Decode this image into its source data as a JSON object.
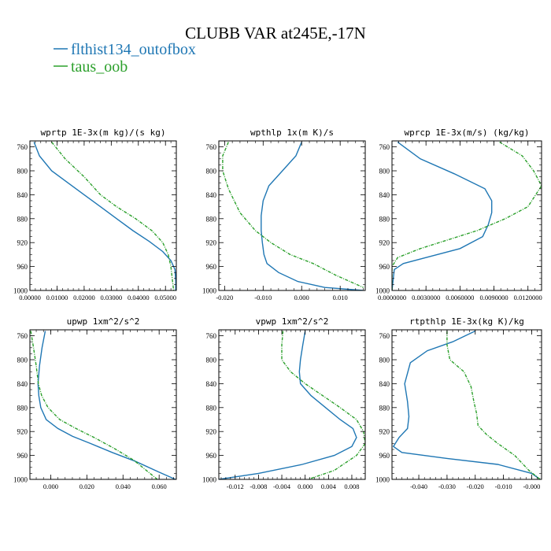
{
  "figure": {
    "title": "CLUBB VAR at245E,-17N",
    "legend": [
      {
        "label": "flthist134_outofbox",
        "color": "#1f77b4"
      },
      {
        "label": "taus_oob",
        "color": "#2ca02c"
      }
    ],
    "legend_placement": "top-left"
  },
  "chart_data": [
    {
      "type": "line",
      "title": "wprtp  1E-3x(m kg)/(s kg)",
      "xlim": [
        0.0,
        0.054
      ],
      "ylim": [
        1000,
        750
      ],
      "y_inverted": true,
      "xticks": [
        0.0,
        0.01,
        0.02,
        0.03,
        0.04,
        0.05
      ],
      "xtick_labels": [
        "0.00000",
        "0.01000",
        "0.02000",
        "0.03000",
        "0.04000",
        "0.05000"
      ],
      "yticks": [
        760,
        800,
        840,
        880,
        920,
        960,
        1000
      ],
      "ytick_labels": [
        "760",
        "800",
        "840",
        "880",
        "920",
        "960",
        "1000"
      ],
      "series": [
        {
          "name": "flthist134_outofbox",
          "color": "#1f77b4",
          "dashed": false,
          "x": [
            0.0015,
            0.0035,
            0.008,
            0.014,
            0.02,
            0.026,
            0.032,
            0.038,
            0.044,
            0.049,
            0.052,
            0.0535,
            0.0538,
            0.0538
          ],
          "y": [
            752,
            775,
            800,
            820,
            840,
            860,
            880,
            900,
            918,
            935,
            950,
            965,
            985,
            1000
          ]
        },
        {
          "name": "taus_oob",
          "color": "#2ca02c",
          "dashed": true,
          "x": [
            0.008,
            0.013,
            0.02,
            0.026,
            0.032,
            0.039,
            0.045,
            0.049,
            0.051,
            0.052,
            0.0525,
            0.053
          ],
          "y": [
            752,
            780,
            810,
            840,
            860,
            880,
            900,
            920,
            940,
            960,
            980,
            1000
          ]
        }
      ]
    },
    {
      "type": "line",
      "title": "wpthlp  1x(m K)/s",
      "xlim": [
        -0.0215,
        0.0165
      ],
      "ylim": [
        1000,
        750
      ],
      "y_inverted": true,
      "xticks": [
        -0.02,
        -0.01,
        0.0,
        0.01
      ],
      "xtick_labels": [
        "-0.020",
        "-0.010",
        "0.000",
        "0.010"
      ],
      "yticks": [
        760,
        800,
        840,
        880,
        920,
        960,
        1000
      ],
      "ytick_labels": [
        "760",
        "800",
        "840",
        "880",
        "920",
        "960",
        "1000"
      ],
      "series": [
        {
          "name": "flthist134_outofbox",
          "color": "#1f77b4",
          "dashed": false,
          "x": [
            0.0,
            -0.0015,
            -0.005,
            -0.0085,
            -0.01,
            -0.0105,
            -0.0105,
            -0.0102,
            -0.0098,
            -0.009,
            -0.006,
            -0.001,
            0.006,
            0.016
          ],
          "y": [
            752,
            775,
            800,
            825,
            850,
            875,
            900,
            920,
            940,
            955,
            970,
            985,
            995,
            1000
          ]
        },
        {
          "name": "taus_oob",
          "color": "#2ca02c",
          "dashed": true,
          "x": [
            -0.019,
            -0.0205,
            -0.0205,
            -0.019,
            -0.016,
            -0.012,
            -0.008,
            -0.003,
            0.003,
            0.009,
            0.016
          ],
          "y": [
            752,
            775,
            800,
            830,
            870,
            900,
            920,
            940,
            955,
            975,
            995
          ]
        }
      ]
    },
    {
      "type": "line",
      "title": "wprcp  1E-3x(m/s) (kg/kg)",
      "xlim": [
        0.0,
        0.0132
      ],
      "ylim": [
        1000,
        750
      ],
      "y_inverted": true,
      "xticks": [
        0.0,
        0.003,
        0.006,
        0.009,
        0.012
      ],
      "xtick_labels": [
        "0.0000000",
        "0.0030000",
        "0.0060000",
        "0.0090000",
        "0.0120000"
      ],
      "yticks": [
        760,
        800,
        840,
        880,
        920,
        960,
        1000
      ],
      "ytick_labels": [
        "760",
        "800",
        "840",
        "880",
        "920",
        "960",
        "1000"
      ],
      "series": [
        {
          "name": "flthist134_outofbox",
          "color": "#1f77b4",
          "dashed": false,
          "x": [
            0.0005,
            0.0025,
            0.0055,
            0.0082,
            0.0088,
            0.0088,
            0.0085,
            0.008,
            0.006,
            0.003,
            0.001,
            0.0002,
            0.0
          ],
          "y": [
            752,
            780,
            805,
            830,
            850,
            870,
            890,
            910,
            930,
            945,
            955,
            965,
            1000
          ]
        },
        {
          "name": "taus_oob",
          "color": "#2ca02c",
          "dashed": true,
          "x": [
            0.0095,
            0.0115,
            0.0125,
            0.0132,
            0.012,
            0.01,
            0.0075,
            0.005,
            0.0025,
            0.0005,
            0.0,
            0.0
          ],
          "y": [
            752,
            775,
            800,
            825,
            860,
            880,
            900,
            915,
            930,
            945,
            960,
            1000
          ]
        }
      ]
    },
    {
      "type": "line",
      "title": "upwp  1xm^2/s^2",
      "xlim": [
        -0.0115,
        0.0695
      ],
      "ylim": [
        1000,
        750
      ],
      "y_inverted": true,
      "xticks": [
        0.0,
        0.02,
        0.04,
        0.06
      ],
      "xtick_labels": [
        "0.000",
        "0.020",
        "0.040",
        "0.060"
      ],
      "yticks": [
        760,
        800,
        840,
        880,
        920,
        960,
        1000
      ],
      "ytick_labels": [
        "760",
        "800",
        "840",
        "880",
        "920",
        "960",
        "1000"
      ],
      "series": [
        {
          "name": "flthist134_outofbox",
          "color": "#1f77b4",
          "dashed": false,
          "x": [
            -0.003,
            -0.0048,
            -0.0062,
            -0.007,
            -0.0066,
            -0.0055,
            -0.0025,
            0.004,
            0.012,
            0.022,
            0.034,
            0.047,
            0.06,
            0.069
          ],
          "y": [
            752,
            780,
            810,
            840,
            860,
            880,
            900,
            915,
            928,
            940,
            955,
            970,
            988,
            1000
          ]
        },
        {
          "name": "taus_oob",
          "color": "#2ca02c",
          "dashed": true,
          "x": [
            -0.011,
            -0.0095,
            -0.008,
            -0.0068,
            -0.005,
            -0.0015,
            0.005,
            0.014,
            0.024,
            0.035,
            0.046,
            0.059
          ],
          "y": [
            752,
            780,
            810,
            840,
            860,
            880,
            900,
            915,
            930,
            948,
            968,
            1000
          ]
        }
      ]
    },
    {
      "type": "line",
      "title": "vpwp  1xm^2/s^2",
      "xlim": [
        -0.0148,
        0.0103
      ],
      "ylim": [
        1000,
        750
      ],
      "y_inverted": true,
      "xticks": [
        -0.012,
        -0.008,
        -0.004,
        0.0,
        0.004,
        0.008
      ],
      "xtick_labels": [
        "-0.012",
        "-0.008",
        "-0.004",
        "0.000",
        "0.004",
        "0.008"
      ],
      "yticks": [
        760,
        800,
        840,
        880,
        920,
        960,
        1000
      ],
      "ytick_labels": [
        "760",
        "800",
        "840",
        "880",
        "920",
        "960",
        "1000"
      ],
      "series": [
        {
          "name": "flthist134_outofbox",
          "color": "#1f77b4",
          "dashed": false,
          "x": [
            0.0,
            -0.0004,
            -0.0008,
            -0.001,
            -0.0008,
            0.001,
            0.0035,
            0.006,
            0.0082,
            0.0088,
            0.008,
            0.005,
            -0.0005,
            -0.008,
            -0.0148
          ],
          "y": [
            752,
            775,
            800,
            820,
            840,
            860,
            880,
            900,
            915,
            930,
            945,
            960,
            975,
            990,
            1000
          ]
        },
        {
          "name": "taus_oob",
          "color": "#2ca02c",
          "dashed": true,
          "x": [
            -0.0038,
            -0.004,
            -0.004,
            -0.0025,
            0.0,
            0.003,
            0.006,
            0.0088,
            0.01,
            0.0103,
            0.0088,
            0.005,
            0.0005
          ],
          "y": [
            752,
            775,
            800,
            820,
            840,
            860,
            880,
            900,
            920,
            940,
            960,
            985,
            1000
          ]
        }
      ]
    },
    {
      "type": "line",
      "title": "rtpthlp  1E-3x(kg K)/kg",
      "xlim": [
        -0.0495,
        0.0035
      ],
      "ylim": [
        1000,
        750
      ],
      "y_inverted": true,
      "xticks": [
        -0.04,
        -0.03,
        -0.02,
        -0.01,
        0.0
      ],
      "xtick_labels": [
        "-0.040",
        "-0.030",
        "-0.020",
        "-0.010",
        "-0.000"
      ],
      "yticks": [
        760,
        800,
        840,
        880,
        920,
        960,
        1000
      ],
      "ytick_labels": [
        "760",
        "800",
        "840",
        "880",
        "920",
        "960",
        "1000"
      ],
      "series": [
        {
          "name": "flthist134_outofbox",
          "color": "#1f77b4",
          "dashed": false,
          "x": [
            -0.02,
            -0.028,
            -0.037,
            -0.043,
            -0.045,
            -0.044,
            -0.0435,
            -0.044,
            -0.047,
            -0.049,
            -0.046,
            -0.03,
            -0.012,
            0.0,
            0.003
          ],
          "y": [
            752,
            770,
            785,
            805,
            840,
            870,
            895,
            915,
            930,
            945,
            955,
            965,
            975,
            990,
            1000
          ]
        },
        {
          "name": "taus_oob",
          "color": "#2ca02c",
          "dashed": true,
          "x": [
            -0.03,
            -0.03,
            -0.029,
            -0.024,
            -0.0215,
            -0.0205,
            -0.0195,
            -0.019,
            -0.016,
            -0.012,
            -0.006,
            -0.001,
            0.003
          ],
          "y": [
            752,
            775,
            800,
            820,
            845,
            870,
            890,
            910,
            925,
            940,
            960,
            985,
            1000
          ]
        }
      ]
    }
  ]
}
